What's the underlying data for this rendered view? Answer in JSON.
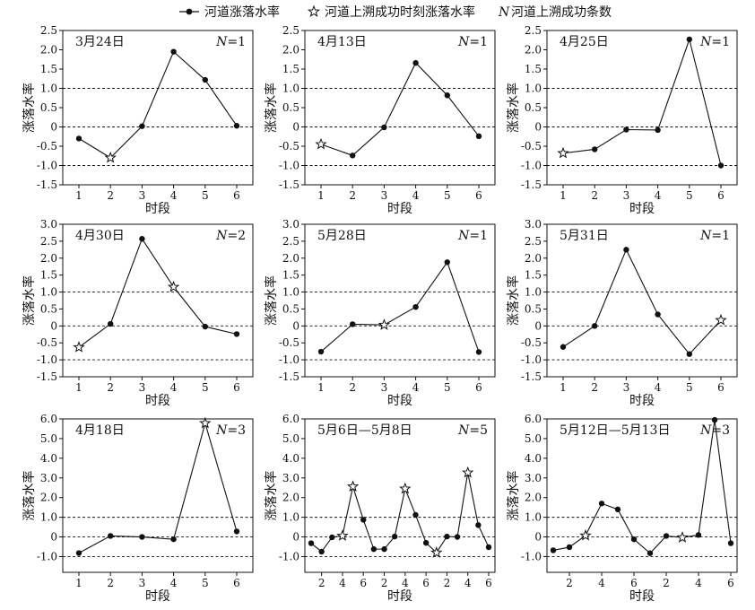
{
  "legend": {
    "line_item": "河道涨落水率",
    "star_item": "河道上溯成功时刻涨落水率",
    "n_symbol": "N",
    "n_item": "河道上溯成功条数"
  },
  "chart_data": [
    {
      "type": "line",
      "title": "3月24日",
      "n_label": "N=1",
      "xlabel": "时段",
      "ylabel": "涨落水率",
      "x": [
        1,
        2,
        3,
        4,
        5,
        6
      ],
      "y": [
        -0.3,
        -0.8,
        0.02,
        1.95,
        1.22,
        0.03
      ],
      "star": [
        false,
        true,
        false,
        false,
        false,
        false
      ],
      "ylim": [
        -1.5,
        2.5
      ],
      "yticks": [
        "-1.5",
        "-1.0",
        "-0.5",
        "0",
        "0.5",
        "1.0",
        "1.5",
        "2.0",
        "2.5"
      ],
      "xticks": [
        "1",
        "2",
        "3",
        "4",
        "5",
        "6"
      ],
      "ref_lines": [
        -1,
        0,
        1
      ]
    },
    {
      "type": "line",
      "title": "4月13日",
      "n_label": "N=1",
      "xlabel": "时段",
      "ylabel": "涨落水率",
      "x": [
        1,
        2,
        3,
        4,
        5,
        6
      ],
      "y": [
        -0.45,
        -0.74,
        -0.01,
        1.66,
        0.82,
        -0.24
      ],
      "star": [
        true,
        false,
        false,
        false,
        false,
        false
      ],
      "ylim": [
        -1.5,
        2.5
      ],
      "yticks": [
        "-1.5",
        "-1.0",
        "-0.5",
        "0",
        "0.5",
        "1.0",
        "1.5",
        "2.0",
        "2.5"
      ],
      "xticks": [
        "1",
        "2",
        "3",
        "4",
        "5",
        "6"
      ],
      "ref_lines": [
        -1,
        0,
        1
      ]
    },
    {
      "type": "line",
      "title": "4月25日",
      "n_label": "N=1",
      "xlabel": "时段",
      "ylabel": "涨落水率",
      "x": [
        1,
        2,
        3,
        4,
        5,
        6
      ],
      "y": [
        -0.68,
        -0.58,
        -0.07,
        -0.08,
        2.27,
        -1.0
      ],
      "star": [
        true,
        false,
        false,
        false,
        false,
        false
      ],
      "ylim": [
        -1.5,
        2.5
      ],
      "yticks": [
        "-1.5",
        "-1.0",
        "-0.5",
        "0",
        "0.5",
        "1.0",
        "1.5",
        "2.0",
        "2.5"
      ],
      "xticks": [
        "1",
        "2",
        "3",
        "4",
        "5",
        "6"
      ],
      "ref_lines": [
        -1,
        0,
        1
      ]
    },
    {
      "type": "line",
      "title": "4月30日",
      "n_label": "N=2",
      "xlabel": "时段",
      "ylabel": "涨落水率",
      "x": [
        1,
        2,
        3,
        4,
        5,
        6
      ],
      "y": [
        -0.63,
        0.06,
        2.57,
        1.15,
        -0.02,
        -0.24
      ],
      "star": [
        true,
        false,
        false,
        true,
        false,
        false
      ],
      "ylim": [
        -1.5,
        3.0
      ],
      "yticks": [
        "-1.5",
        "-1.0",
        "-0.5",
        "0",
        "0.5",
        "1.0",
        "1.5",
        "2.0",
        "2.5",
        "3.0"
      ],
      "xticks": [
        "1",
        "2",
        "3",
        "4",
        "5",
        "6"
      ],
      "ref_lines": [
        -1,
        0,
        1
      ]
    },
    {
      "type": "line",
      "title": "5月28日",
      "n_label": "N=1",
      "xlabel": "时段",
      "ylabel": "涨落水率",
      "x": [
        1,
        2,
        3,
        4,
        5,
        6
      ],
      "y": [
        -0.76,
        0.05,
        0.03,
        0.56,
        1.88,
        -0.77
      ],
      "star": [
        false,
        false,
        true,
        false,
        false,
        false
      ],
      "ylim": [
        -1.5,
        3.0
      ],
      "yticks": [
        "-1.5",
        "-1.0",
        "-0.5",
        "0",
        "0.5",
        "1.0",
        "1.5",
        "2.0",
        "2.5",
        "3.0"
      ],
      "xticks": [
        "1",
        "2",
        "3",
        "4",
        "5",
        "6"
      ],
      "ref_lines": [
        -1,
        0,
        1
      ]
    },
    {
      "type": "line",
      "title": "5月31日",
      "n_label": "N=1",
      "xlabel": "时段",
      "ylabel": "涨落水率",
      "x": [
        1,
        2,
        3,
        4,
        5,
        6
      ],
      "y": [
        -0.62,
        0.0,
        2.25,
        0.34,
        -0.83,
        0.17
      ],
      "star": [
        false,
        false,
        false,
        false,
        false,
        true
      ],
      "ylim": [
        -1.5,
        3.0
      ],
      "yticks": [
        "-1.5",
        "-1.0",
        "-0.5",
        "0",
        "0.5",
        "1.0",
        "1.5",
        "2.0",
        "2.5",
        "3.0"
      ],
      "xticks": [
        "1",
        "2",
        "3",
        "4",
        "5",
        "6"
      ],
      "ref_lines": [
        -1,
        0,
        1
      ]
    },
    {
      "type": "line",
      "title": "4月18日",
      "n_label": "N=3",
      "xlabel": "时段",
      "ylabel": "涨落水率",
      "x": [
        1,
        2,
        3,
        4,
        5,
        6
      ],
      "y": [
        -0.82,
        0.05,
        0.0,
        -0.12,
        5.78,
        0.28
      ],
      "star": [
        false,
        false,
        false,
        false,
        true,
        false
      ],
      "ylim": [
        -1.8,
        6.0
      ],
      "yticks": [
        "-1.0",
        "0",
        "1.0",
        "2.0",
        "3.0",
        "4.0",
        "5.0",
        "6.0"
      ],
      "xticks": [
        "1",
        "2",
        "3",
        "4",
        "5",
        "6"
      ],
      "ref_lines": [
        -1,
        0,
        1
      ]
    },
    {
      "type": "line",
      "title": "5月6日—5月8日",
      "n_label": "N=5",
      "xlabel": "时段",
      "ylabel": "涨落水率",
      "x": [
        1,
        2,
        3,
        4,
        5,
        6,
        7,
        8,
        9,
        10,
        11,
        12,
        13,
        14,
        15,
        16,
        17,
        18
      ],
      "y": [
        -0.32,
        -0.75,
        -0.02,
        0.06,
        2.56,
        0.87,
        -0.62,
        -0.62,
        0.02,
        2.45,
        1.12,
        -0.3,
        -0.8,
        0.02,
        0.0,
        3.27,
        0.6,
        -0.52
      ],
      "star": [
        false,
        false,
        false,
        true,
        true,
        false,
        false,
        false,
        false,
        true,
        false,
        false,
        true,
        false,
        false,
        true,
        false,
        false
      ],
      "ylim": [
        -1.8,
        6.0
      ],
      "yticks": [
        "-1.0",
        "0",
        "1.0",
        "2.0",
        "3.0",
        "4.0",
        "5.0",
        "6.0"
      ],
      "xticks": [
        "2",
        "4",
        "6",
        "2",
        "4",
        "6",
        "2",
        "4",
        "6"
      ],
      "xtick_positions": [
        2,
        4,
        6,
        8,
        10,
        12,
        14,
        16,
        18
      ],
      "ref_lines": [
        -1,
        0,
        1
      ]
    },
    {
      "type": "line",
      "title": "5月12日—5月13日",
      "n_label": "N=3",
      "xlabel": "时段",
      "ylabel": "涨落水率",
      "x": [
        1,
        2,
        3,
        4,
        5,
        6,
        7,
        8,
        9,
        10,
        11,
        12
      ],
      "y": [
        -0.68,
        -0.52,
        0.07,
        1.7,
        1.4,
        -0.12,
        -0.83,
        0.05,
        -0.03,
        0.1,
        5.95,
        -0.32
      ],
      "star": [
        false,
        false,
        true,
        false,
        false,
        false,
        false,
        false,
        true,
        false,
        false,
        false
      ],
      "ylim": [
        -1.8,
        6.0
      ],
      "yticks": [
        "-1.0",
        "0",
        "1.0",
        "2.0",
        "3.0",
        "4.0",
        "5.0",
        "6.0"
      ],
      "xticks": [
        "2",
        "4",
        "6",
        "2",
        "4",
        "6"
      ],
      "xtick_positions": [
        2,
        4,
        6,
        8,
        10,
        12
      ],
      "ref_lines": [
        -1,
        0,
        1
      ]
    }
  ]
}
